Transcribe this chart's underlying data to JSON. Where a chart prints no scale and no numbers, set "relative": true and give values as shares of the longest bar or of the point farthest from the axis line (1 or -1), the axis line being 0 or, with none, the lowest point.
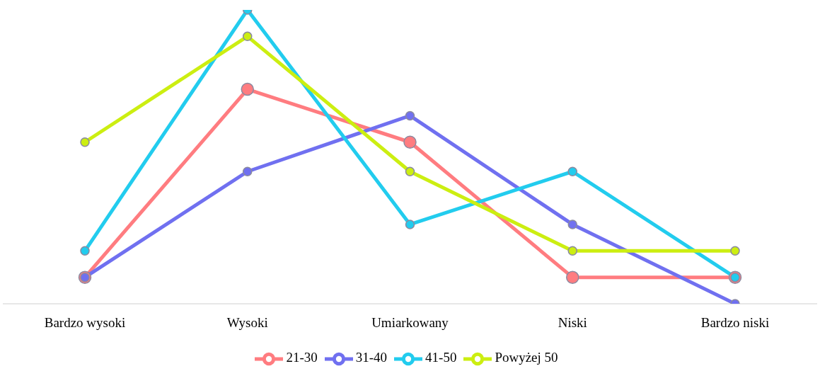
{
  "chart_data": {
    "type": "line",
    "relative": true,
    "categories": [
      "Bardzo wysoki",
      "Wysoki",
      "Umiarkowany",
      "Niski",
      "Bardzo niski"
    ],
    "series": [
      {
        "name": "21-30",
        "color": "#ff7c80",
        "values": [
          0.09,
          0.73,
          0.55,
          0.09,
          0.09
        ]
      },
      {
        "name": "31-40",
        "color": "#7070f0",
        "values": [
          0.09,
          0.45,
          0.64,
          0.27,
          0
        ]
      },
      {
        "name": "41-50",
        "color": "#22ccee",
        "values": [
          0.18,
          1,
          0.27,
          0.45,
          0.09
        ]
      },
      {
        "name": "Powyżej 50",
        "color": "#ccee11",
        "values": [
          0.55,
          0.91,
          0.45,
          0.18,
          0.18
        ]
      }
    ],
    "marker": "circle",
    "legend": "bottom",
    "grid": false
  }
}
